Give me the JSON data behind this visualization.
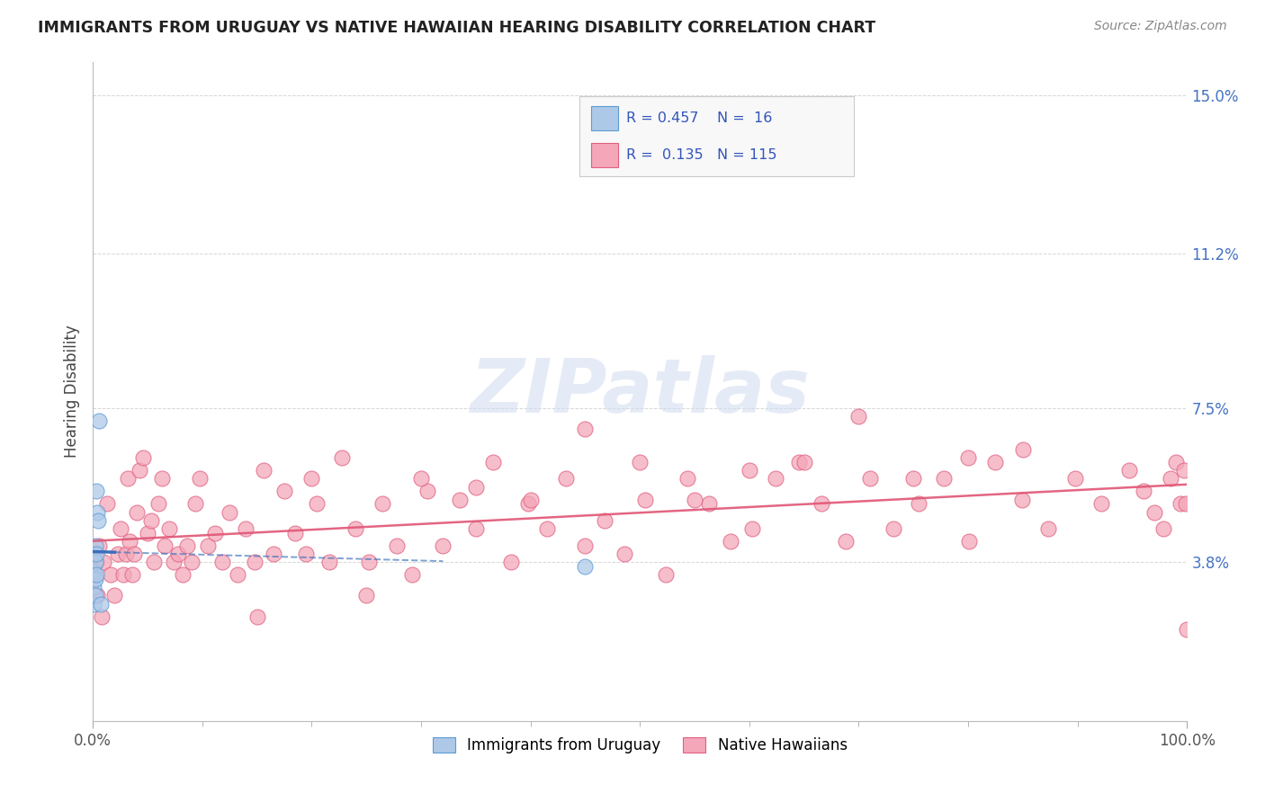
{
  "title": "IMMIGRANTS FROM URUGUAY VS NATIVE HAWAIIAN HEARING DISABILITY CORRELATION CHART",
  "source": "Source: ZipAtlas.com",
  "ylabel": "Hearing Disability",
  "xlim": [
    0,
    1.0
  ],
  "ylim": [
    0,
    0.158
  ],
  "x_tick_positions": [
    0.0,
    1.0
  ],
  "x_tick_labels": [
    "0.0%",
    "100.0%"
  ],
  "y_tick_values": [
    0.038,
    0.075,
    0.112,
    0.15
  ],
  "y_tick_labels": [
    "3.8%",
    "7.5%",
    "11.2%",
    "15.0%"
  ],
  "blue_fill": "#aec9e8",
  "blue_edge": "#5b9bd5",
  "pink_fill": "#f4a7b9",
  "pink_edge": "#e06080",
  "blue_trend_color": "#3a6fbd",
  "pink_trend_color": "#e05575",
  "grid_color": "#cccccc",
  "title_color": "#222222",
  "source_color": "#888888",
  "ytick_color": "#4472c4",
  "xtick_color": "#555555",
  "watermark_color": "#d5dff0",
  "R_blue": 0.457,
  "N_blue": 16,
  "R_pink": 0.135,
  "N_pink": 115,
  "blue_scatter_x": [
    0.001,
    0.001,
    0.001,
    0.001,
    0.002,
    0.002,
    0.002,
    0.002,
    0.003,
    0.003,
    0.003,
    0.004,
    0.005,
    0.006,
    0.007,
    0.45
  ],
  "blue_scatter_y": [
    0.028,
    0.032,
    0.036,
    0.04,
    0.03,
    0.034,
    0.038,
    0.042,
    0.035,
    0.04,
    0.055,
    0.05,
    0.048,
    0.072,
    0.028,
    0.037
  ],
  "pink_scatter_x": [
    0.001,
    0.003,
    0.004,
    0.006,
    0.008,
    0.01,
    0.013,
    0.016,
    0.02,
    0.023,
    0.025,
    0.028,
    0.03,
    0.032,
    0.034,
    0.036,
    0.038,
    0.04,
    0.043,
    0.046,
    0.05,
    0.053,
    0.056,
    0.06,
    0.063,
    0.066,
    0.07,
    0.074,
    0.078,
    0.082,
    0.086,
    0.09,
    0.094,
    0.098,
    0.105,
    0.112,
    0.118,
    0.125,
    0.132,
    0.14,
    0.148,
    0.156,
    0.165,
    0.175,
    0.185,
    0.195,
    0.205,
    0.216,
    0.228,
    0.24,
    0.252,
    0.265,
    0.278,
    0.292,
    0.306,
    0.32,
    0.335,
    0.35,
    0.366,
    0.382,
    0.398,
    0.415,
    0.432,
    0.45,
    0.468,
    0.486,
    0.505,
    0.524,
    0.543,
    0.563,
    0.583,
    0.603,
    0.624,
    0.645,
    0.666,
    0.688,
    0.71,
    0.732,
    0.755,
    0.778,
    0.801,
    0.825,
    0.849,
    0.873,
    0.898,
    0.922,
    0.947,
    0.96,
    0.97,
    0.978,
    0.985,
    0.99,
    0.994,
    0.997,
    0.999,
    1.0,
    0.5,
    0.55,
    0.25,
    0.35,
    0.15,
    0.45,
    0.3,
    0.4,
    0.2,
    0.6,
    0.7,
    0.8,
    0.65,
    0.75,
    0.85
  ],
  "pink_scatter_y": [
    0.035,
    0.038,
    0.03,
    0.042,
    0.025,
    0.038,
    0.052,
    0.035,
    0.03,
    0.04,
    0.046,
    0.035,
    0.04,
    0.058,
    0.043,
    0.035,
    0.04,
    0.05,
    0.06,
    0.063,
    0.045,
    0.048,
    0.038,
    0.052,
    0.058,
    0.042,
    0.046,
    0.038,
    0.04,
    0.035,
    0.042,
    0.038,
    0.052,
    0.058,
    0.042,
    0.045,
    0.038,
    0.05,
    0.035,
    0.046,
    0.038,
    0.06,
    0.04,
    0.055,
    0.045,
    0.04,
    0.052,
    0.038,
    0.063,
    0.046,
    0.038,
    0.052,
    0.042,
    0.035,
    0.055,
    0.042,
    0.053,
    0.046,
    0.062,
    0.038,
    0.052,
    0.046,
    0.058,
    0.042,
    0.048,
    0.04,
    0.053,
    0.035,
    0.058,
    0.052,
    0.043,
    0.046,
    0.058,
    0.062,
    0.052,
    0.043,
    0.058,
    0.046,
    0.052,
    0.058,
    0.043,
    0.062,
    0.053,
    0.046,
    0.058,
    0.052,
    0.06,
    0.055,
    0.05,
    0.046,
    0.058,
    0.062,
    0.052,
    0.06,
    0.052,
    0.022,
    0.062,
    0.053,
    0.03,
    0.056,
    0.025,
    0.07,
    0.058,
    0.053,
    0.058,
    0.06,
    0.073,
    0.063,
    0.062,
    0.058,
    0.065
  ]
}
